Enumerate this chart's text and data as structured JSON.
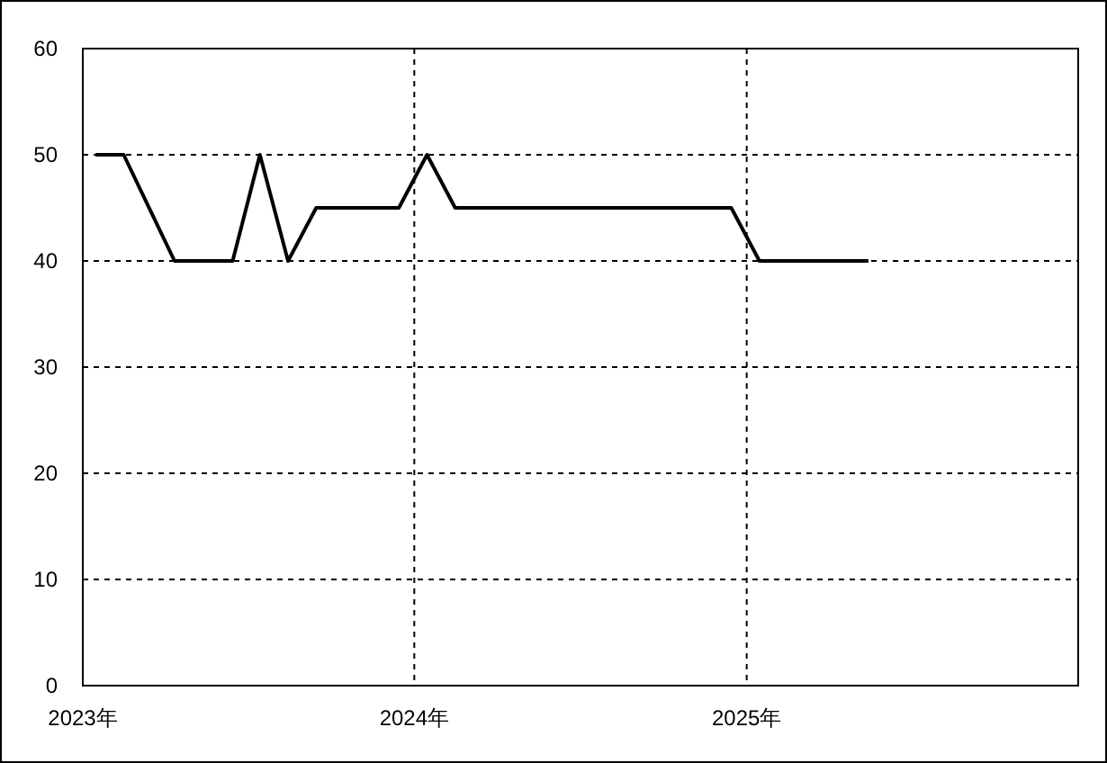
{
  "chart_data": {
    "type": "line",
    "x": [
      "2023-01-15",
      "2023-02-15",
      "2023-04-12",
      "2023-06-15",
      "2023-07-15",
      "2023-08-15",
      "2023-09-15",
      "2023-12-15",
      "2024-01-15",
      "2024-02-15",
      "2024-12-15",
      "2025-01-15",
      "2025-05-15"
    ],
    "series": [
      {
        "color": "#000000",
        "values": [
          50,
          50,
          40,
          40,
          50,
          40,
          45,
          45,
          50,
          45,
          45,
          40,
          40
        ]
      }
    ],
    "xlim": [
      "2023-01-01",
      "2026-01-01"
    ],
    "xticks": [
      {
        "value": "2023-01-01",
        "label": "2023年"
      },
      {
        "value": "2024-01-01",
        "label": "2024年"
      },
      {
        "value": "2025-01-01",
        "label": "2025年"
      }
    ],
    "ylim": [
      0,
      60
    ],
    "yticks": [
      0,
      10,
      20,
      30,
      40,
      50,
      60
    ],
    "grid": true,
    "marker": "none",
    "line_style": "solid"
  }
}
